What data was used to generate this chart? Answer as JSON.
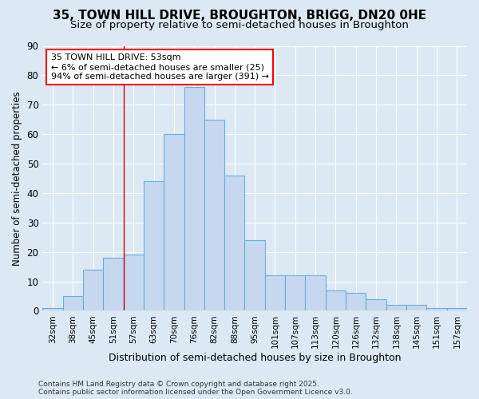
{
  "title1": "35, TOWN HILL DRIVE, BROUGHTON, BRIGG, DN20 0HE",
  "title2": "Size of property relative to semi-detached houses in Broughton",
  "xlabel": "Distribution of semi-detached houses by size in Broughton",
  "ylabel": "Number of semi-detached properties",
  "categories": [
    "32sqm",
    "38sqm",
    "45sqm",
    "51sqm",
    "57sqm",
    "63sqm",
    "70sqm",
    "76sqm",
    "82sqm",
    "88sqm",
    "95sqm",
    "101sqm",
    "107sqm",
    "113sqm",
    "120sqm",
    "126sqm",
    "132sqm",
    "138sqm",
    "145sqm",
    "151sqm",
    "157sqm"
  ],
  "values": [
    1,
    5,
    14,
    18,
    19,
    44,
    60,
    76,
    65,
    46,
    24,
    12,
    12,
    12,
    7,
    6,
    4,
    2,
    2,
    1,
    1
  ],
  "bar_color": "#c5d8f0",
  "bar_edge_color": "#6baed6",
  "red_line_index": 3.5,
  "annotation_line1": "35 TOWN HILL DRIVE: 53sqm",
  "annotation_line2": "← 6% of semi-detached houses are smaller (25)",
  "annotation_line3": "94% of semi-detached houses are larger (391) →",
  "ylim": [
    0,
    90
  ],
  "yticks": [
    0,
    10,
    20,
    30,
    40,
    50,
    60,
    70,
    80,
    90
  ],
  "footer": "Contains HM Land Registry data © Crown copyright and database right 2025.\nContains public sector information licensed under the Open Government Licence v3.0.",
  "bg_color": "#dce9f5",
  "grid_color": "#ffffff",
  "title_fontsize": 11,
  "subtitle_fontsize": 9.5
}
